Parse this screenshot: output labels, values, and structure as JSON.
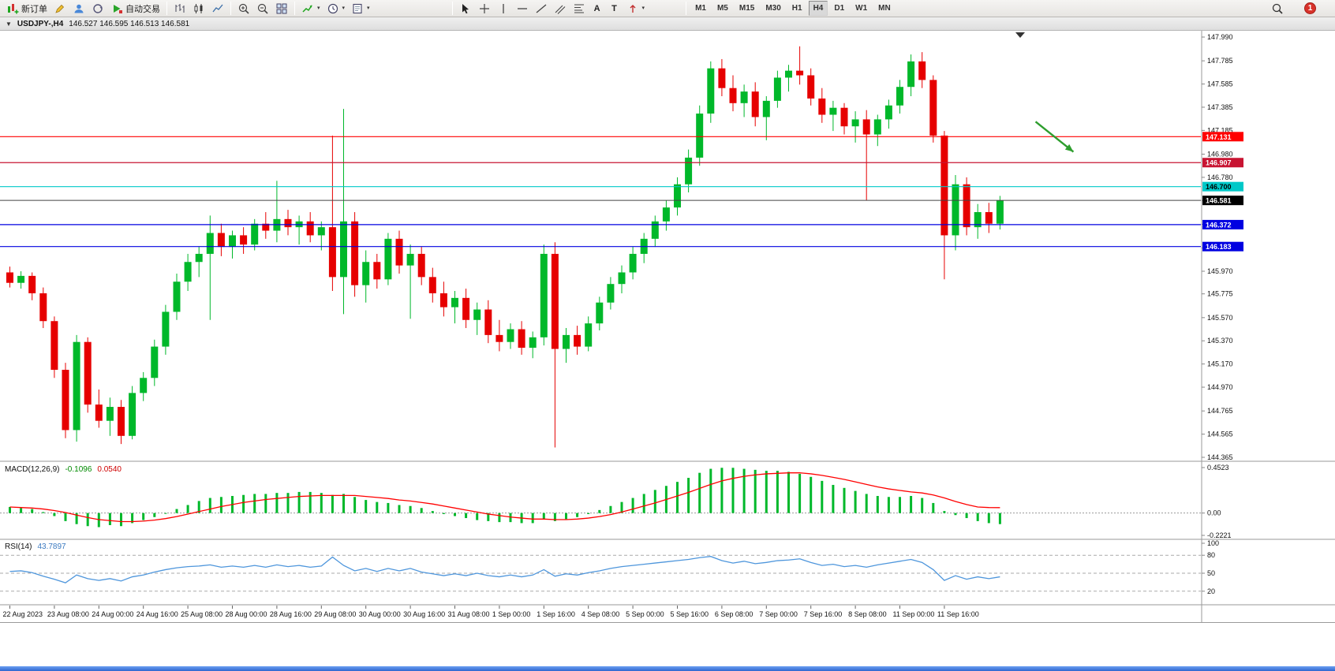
{
  "toolbar": {
    "new_order_label": "新订单",
    "auto_trading_label": "自动交易",
    "timeframes": [
      "M1",
      "M5",
      "M15",
      "M30",
      "H1",
      "H4",
      "D1",
      "W1",
      "MN"
    ],
    "active_timeframe": "H4",
    "notification_count": "1"
  },
  "icons": {
    "window-menu": "▼",
    "caret-down": "▾",
    "text-tool": "A",
    "label-tool": "T"
  },
  "chart_header": {
    "symbol": "USDJPY-,H4",
    "ohlc": "146.527 146.595 146.513 146.581"
  },
  "chart_data": {
    "type": "candlestick",
    "symbol": "USDJPY",
    "timeframe": "H4",
    "price_panel": {
      "ylim": [
        144.365,
        147.99
      ],
      "axis_labels": [
        "147.990",
        "147.785",
        "147.585",
        "147.385",
        "147.185",
        "146.980",
        "146.780",
        "146.580",
        "146.375",
        "146.170",
        "145.970",
        "145.775",
        "145.570",
        "145.370",
        "145.170",
        "144.970",
        "144.765",
        "144.565",
        "144.365"
      ],
      "bull_color": "#00B82A",
      "bear_color": "#E60000",
      "candles_ohlc": [
        [
          145.96,
          146.01,
          145.83,
          145.87
        ],
        [
          145.87,
          145.97,
          145.82,
          145.93
        ],
        [
          145.93,
          145.96,
          145.72,
          145.78
        ],
        [
          145.78,
          145.83,
          145.48,
          145.54
        ],
        [
          145.54,
          145.58,
          145.05,
          145.12
        ],
        [
          145.12,
          145.18,
          144.53,
          144.6
        ],
        [
          144.6,
          145.42,
          144.5,
          145.36
        ],
        [
          145.36,
          145.4,
          144.75,
          144.82
        ],
        [
          144.82,
          144.95,
          144.62,
          144.68
        ],
        [
          144.68,
          144.88,
          144.55,
          144.8
        ],
        [
          144.8,
          144.86,
          144.48,
          144.55
        ],
        [
          144.55,
          144.98,
          144.52,
          144.92
        ],
        [
          144.92,
          145.1,
          144.85,
          145.05
        ],
        [
          145.05,
          145.38,
          144.98,
          145.32
        ],
        [
          145.32,
          145.68,
          145.25,
          145.62
        ],
        [
          145.62,
          145.95,
          145.55,
          145.88
        ],
        [
          145.88,
          146.12,
          145.8,
          146.05
        ],
        [
          146.05,
          146.18,
          145.92,
          146.12
        ],
        [
          146.12,
          146.45,
          145.55,
          146.3
        ],
        [
          146.3,
          146.38,
          146.1,
          146.18
        ],
        [
          146.18,
          146.32,
          146.08,
          146.28
        ],
        [
          146.28,
          146.35,
          146.12,
          146.2
        ],
        [
          146.2,
          146.42,
          146.15,
          146.38
        ],
        [
          146.38,
          146.48,
          146.25,
          146.32
        ],
        [
          146.32,
          146.75,
          146.22,
          146.42
        ],
        [
          146.42,
          146.5,
          146.28,
          146.35
        ],
        [
          146.35,
          146.45,
          146.2,
          146.4
        ],
        [
          146.4,
          146.48,
          146.22,
          146.28
        ],
        [
          146.28,
          146.4,
          146.15,
          146.35
        ],
        [
          146.35,
          147.14,
          145.8,
          145.92
        ],
        [
          145.92,
          147.37,
          145.6,
          146.4
        ],
        [
          146.4,
          146.48,
          145.75,
          145.85
        ],
        [
          145.85,
          146.15,
          145.7,
          146.05
        ],
        [
          146.05,
          146.12,
          145.82,
          145.9
        ],
        [
          145.9,
          146.3,
          145.85,
          146.25
        ],
        [
          146.25,
          146.32,
          145.95,
          146.02
        ],
        [
          146.02,
          146.2,
          145.56,
          146.12
        ],
        [
          146.12,
          146.18,
          145.85,
          145.92
        ],
        [
          145.92,
          146.0,
          145.7,
          145.78
        ],
        [
          145.78,
          145.88,
          145.58,
          145.66
        ],
        [
          145.66,
          145.8,
          145.52,
          145.74
        ],
        [
          145.74,
          145.82,
          145.48,
          145.55
        ],
        [
          145.55,
          145.7,
          145.42,
          145.64
        ],
        [
          145.64,
          145.72,
          145.35,
          145.42
        ],
        [
          145.42,
          145.55,
          145.28,
          145.36
        ],
        [
          145.36,
          145.52,
          145.3,
          145.47
        ],
        [
          145.47,
          145.54,
          145.25,
          145.31
        ],
        [
          145.31,
          145.45,
          145.22,
          145.4
        ],
        [
          145.4,
          146.2,
          145.33,
          146.12
        ],
        [
          146.12,
          146.22,
          144.45,
          145.3
        ],
        [
          145.3,
          145.48,
          145.18,
          145.42
        ],
        [
          145.42,
          145.5,
          145.25,
          145.32
        ],
        [
          145.32,
          145.58,
          145.28,
          145.52
        ],
        [
          145.52,
          145.75,
          145.46,
          145.7
        ],
        [
          145.7,
          145.92,
          145.64,
          145.86
        ],
        [
          145.86,
          146.02,
          145.78,
          145.96
        ],
        [
          145.96,
          146.18,
          145.9,
          146.12
        ],
        [
          146.12,
          146.3,
          146.04,
          146.25
        ],
        [
          146.25,
          146.45,
          146.18,
          146.4
        ],
        [
          146.4,
          146.58,
          146.32,
          146.52
        ],
        [
          146.52,
          146.78,
          146.45,
          146.72
        ],
        [
          146.72,
          147.02,
          146.65,
          146.95
        ],
        [
          146.95,
          147.4,
          146.88,
          147.33
        ],
        [
          147.33,
          147.78,
          147.25,
          147.72
        ],
        [
          147.72,
          147.8,
          147.48,
          147.55
        ],
        [
          147.55,
          147.66,
          147.35,
          147.42
        ],
        [
          147.42,
          147.58,
          147.3,
          147.52
        ],
        [
          147.52,
          147.6,
          147.22,
          147.3
        ],
        [
          147.3,
          147.48,
          147.1,
          147.44
        ],
        [
          147.44,
          147.7,
          147.38,
          147.64
        ],
        [
          147.64,
          147.75,
          147.52,
          147.7
        ],
        [
          147.7,
          147.91,
          147.58,
          147.66
        ],
        [
          147.66,
          147.72,
          147.4,
          147.46
        ],
        [
          147.46,
          147.55,
          147.25,
          147.32
        ],
        [
          147.32,
          147.44,
          147.18,
          147.38
        ],
        [
          147.38,
          147.42,
          147.15,
          147.22
        ],
        [
          147.22,
          147.35,
          147.08,
          147.28
        ],
        [
          147.28,
          147.36,
          146.58,
          147.15
        ],
        [
          147.15,
          147.32,
          147.05,
          147.28
        ],
        [
          147.28,
          147.45,
          147.2,
          147.4
        ],
        [
          147.4,
          147.62,
          147.33,
          147.56
        ],
        [
          147.56,
          147.84,
          147.48,
          147.78
        ],
        [
          147.78,
          147.86,
          147.55,
          147.62
        ],
        [
          147.62,
          147.66,
          147.08,
          147.14
        ],
        [
          147.14,
          147.18,
          145.9,
          146.28
        ],
        [
          146.28,
          146.8,
          146.15,
          146.72
        ],
        [
          146.72,
          146.78,
          146.28,
          146.35
        ],
        [
          146.35,
          146.55,
          146.25,
          146.48
        ],
        [
          146.48,
          146.56,
          146.3,
          146.38
        ],
        [
          146.38,
          146.62,
          146.33,
          146.58
        ]
      ],
      "x_labels": [
        {
          "i": 0,
          "t": "22 Aug 2023"
        },
        {
          "i": 4,
          "t": "23 Aug 08:00"
        },
        {
          "i": 8,
          "t": "24 Aug 00:00"
        },
        {
          "i": 12,
          "t": "24 Aug 16:00"
        },
        {
          "i": 16,
          "t": "25 Aug 08:00"
        },
        {
          "i": 20,
          "t": "28 Aug 00:00"
        },
        {
          "i": 24,
          "t": "28 Aug 16:00"
        },
        {
          "i": 28,
          "t": "29 Aug 08:00"
        },
        {
          "i": 32,
          "t": "30 Aug 00:00"
        },
        {
          "i": 36,
          "t": "30 Aug 16:00"
        },
        {
          "i": 40,
          "t": "31 Aug 08:00"
        },
        {
          "i": 44,
          "t": "1 Sep 00:00"
        },
        {
          "i": 48,
          "t": "1 Sep 16:00"
        },
        {
          "i": 52,
          "t": "4 Sep 08:00"
        },
        {
          "i": 56,
          "t": "5 Sep 00:00"
        },
        {
          "i": 60,
          "t": "5 Sep 16:00"
        },
        {
          "i": 64,
          "t": "6 Sep 08:00"
        },
        {
          "i": 68,
          "t": "7 Sep 00:00"
        },
        {
          "i": 72,
          "t": "7 Sep 16:00"
        },
        {
          "i": 76,
          "t": "8 Sep 08:00"
        },
        {
          "i": 80,
          "t": "11 Sep 00:00"
        },
        {
          "i": 84,
          "t": "11 Sep 16:00"
        }
      ],
      "hlines": [
        {
          "price": 147.131,
          "color": "#FF0000",
          "text_color": "#FFFFFF"
        },
        {
          "price": 146.907,
          "color": "#C81432",
          "text_color": "#FFFFFF"
        },
        {
          "price": 146.7,
          "color": "#00C8C8",
          "text_color": "#000000"
        },
        {
          "price": 146.372,
          "color": "#0000E1",
          "text_color": "#FFFFFF"
        },
        {
          "price": 146.183,
          "color": "#0000E1",
          "text_color": "#FFFFFF"
        }
      ],
      "current_price": {
        "value": 146.581,
        "line_color": "#444444",
        "tag_color": "#000000",
        "text_color": "#FFFFFF"
      },
      "arrow_annotation": {
        "from_bar": 92.2,
        "from_price": 147.26,
        "to_bar": 95.6,
        "to_price": 147.0,
        "color": "#2E9E2E"
      }
    },
    "macd": {
      "label": "MACD(12,26,9)",
      "main_value": "-0.1096",
      "signal_value": "0.0540",
      "ylim": [
        -0.2221,
        0.4523
      ],
      "axis_labels": [
        "0.4523",
        "0.00",
        "-0.2221"
      ],
      "histogram_color": "#00B82A",
      "signal_color": "#FF0000",
      "histogram": [
        0.06,
        0.05,
        0.04,
        0.01,
        -0.03,
        -0.08,
        -0.11,
        -0.13,
        -0.14,
        -0.12,
        -0.13,
        -0.1,
        -0.07,
        -0.04,
        0.0,
        0.04,
        0.08,
        0.12,
        0.15,
        0.16,
        0.17,
        0.18,
        0.19,
        0.19,
        0.2,
        0.2,
        0.21,
        0.21,
        0.2,
        0.18,
        0.19,
        0.16,
        0.13,
        0.11,
        0.1,
        0.08,
        0.07,
        0.05,
        0.02,
        -0.01,
        -0.03,
        -0.05,
        -0.07,
        -0.08,
        -0.09,
        -0.09,
        -0.1,
        -0.1,
        -0.06,
        -0.08,
        -0.06,
        -0.04,
        -0.01,
        0.03,
        0.07,
        0.11,
        0.15,
        0.19,
        0.23,
        0.27,
        0.31,
        0.35,
        0.4,
        0.44,
        0.45,
        0.45,
        0.44,
        0.43,
        0.42,
        0.42,
        0.41,
        0.39,
        0.36,
        0.32,
        0.28,
        0.25,
        0.22,
        0.19,
        0.17,
        0.16,
        0.16,
        0.17,
        0.15,
        0.1,
        0.02,
        -0.02,
        -0.05,
        -0.08,
        -0.1,
        -0.11
      ],
      "signal": [
        0.06,
        0.055,
        0.05,
        0.04,
        0.025,
        0.005,
        -0.02,
        -0.045,
        -0.065,
        -0.075,
        -0.085,
        -0.085,
        -0.08,
        -0.07,
        -0.055,
        -0.035,
        -0.01,
        0.015,
        0.04,
        0.065,
        0.085,
        0.105,
        0.12,
        0.135,
        0.145,
        0.155,
        0.165,
        0.17,
        0.175,
        0.175,
        0.175,
        0.175,
        0.165,
        0.155,
        0.145,
        0.13,
        0.12,
        0.105,
        0.09,
        0.07,
        0.05,
        0.03,
        0.01,
        -0.01,
        -0.025,
        -0.04,
        -0.05,
        -0.06,
        -0.06,
        -0.065,
        -0.065,
        -0.06,
        -0.05,
        -0.035,
        -0.015,
        0.01,
        0.04,
        0.07,
        0.1,
        0.135,
        0.17,
        0.205,
        0.245,
        0.285,
        0.32,
        0.345,
        0.365,
        0.38,
        0.39,
        0.395,
        0.4,
        0.4,
        0.39,
        0.375,
        0.355,
        0.335,
        0.31,
        0.285,
        0.26,
        0.24,
        0.225,
        0.21,
        0.2,
        0.18,
        0.15,
        0.115,
        0.085,
        0.06,
        0.055,
        0.054
      ]
    },
    "rsi": {
      "label": "RSI(14)",
      "value": "43.7897",
      "ylim": [
        0,
        100
      ],
      "levels": [
        80,
        50,
        20
      ],
      "axis_labels": [
        "100",
        "80",
        "50",
        "20"
      ],
      "line_color": "#4E96DC",
      "values": [
        53,
        54,
        51,
        45,
        40,
        34,
        47,
        41,
        38,
        41,
        37,
        44,
        47,
        52,
        56,
        59,
        61,
        62,
        64,
        60,
        62,
        60,
        63,
        60,
        64,
        61,
        63,
        60,
        62,
        77,
        63,
        54,
        58,
        53,
        58,
        54,
        58,
        52,
        49,
        46,
        49,
        46,
        50,
        46,
        44,
        47,
        44,
        47,
        56,
        45,
        49,
        47,
        51,
        54,
        58,
        61,
        63,
        65,
        67,
        69,
        71,
        73,
        76,
        78,
        71,
        67,
        70,
        66,
        68,
        71,
        72,
        74,
        68,
        63,
        65,
        61,
        63,
        60,
        64,
        67,
        70,
        73,
        68,
        56,
        38,
        46,
        40,
        44,
        41,
        44
      ]
    }
  }
}
